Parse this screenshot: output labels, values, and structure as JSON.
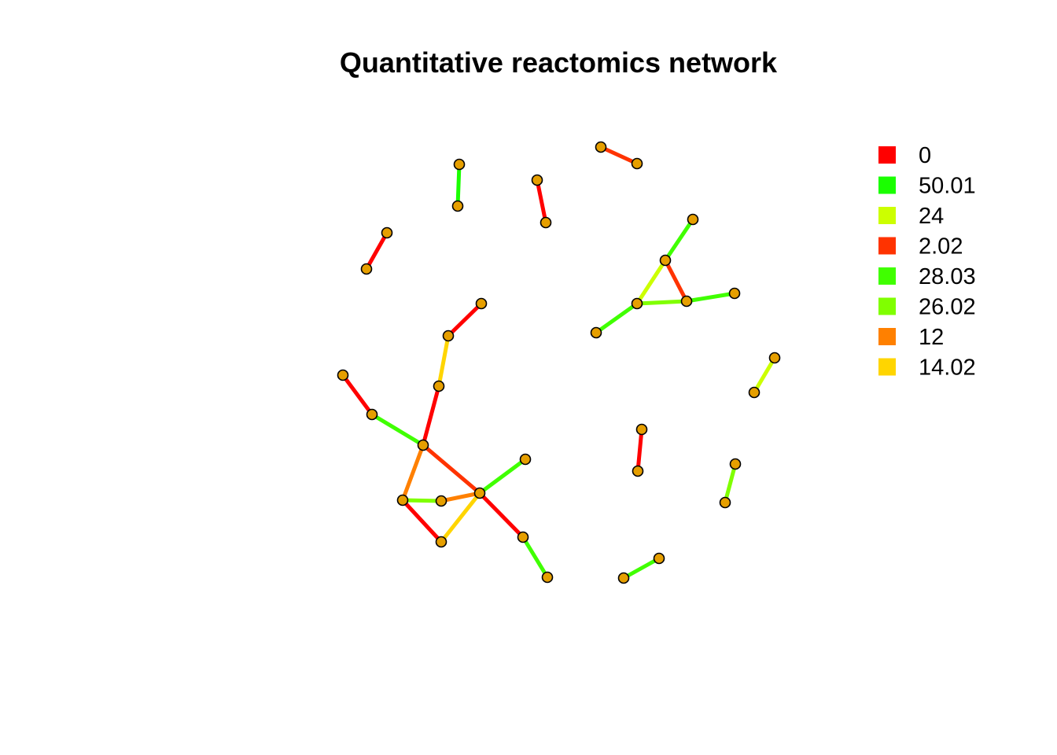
{
  "title": "Quantitative reactomics network",
  "node_color": "#E69F00",
  "legend": [
    {
      "label": "0",
      "color": "#FF0000"
    },
    {
      "label": "50.01",
      "color": "#1AFF00"
    },
    {
      "label": "24",
      "color": "#CCFF00"
    },
    {
      "label": "2.02",
      "color": "#FF3300"
    },
    {
      "label": "28.03",
      "color": "#40FF00"
    },
    {
      "label": "26.02",
      "color": "#80FF00"
    },
    {
      "label": "12",
      "color": "#FF8000"
    },
    {
      "label": "14.02",
      "color": "#FFD500"
    }
  ]
}
